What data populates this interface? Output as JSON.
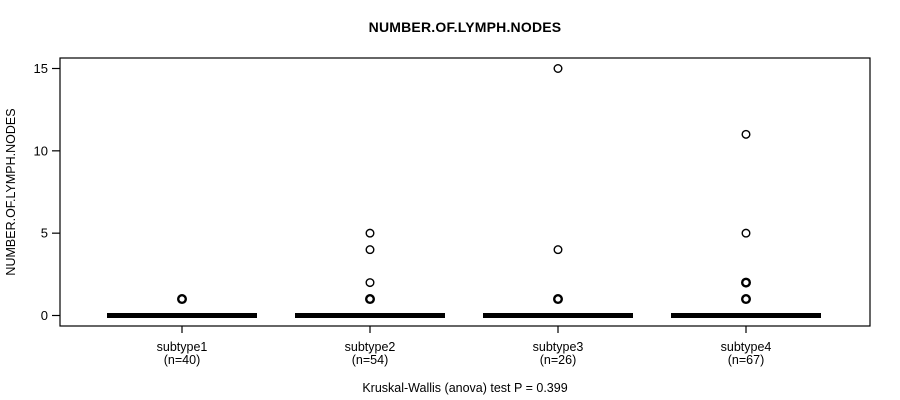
{
  "title": "NUMBER.OF.LYMPH.NODES",
  "footer": "Kruskal-Wallis (anova) test P = 0.399",
  "colors": {
    "foreground": "#000000",
    "background": "#ffffff",
    "box_border": "#000000"
  },
  "chart_data": {
    "type": "boxplot",
    "title": "NUMBER.OF.LYMPH.NODES",
    "xlabel": "",
    "ylabel": "NUMBER.OF.LYMPH.NODES",
    "ylim": [
      0,
      15
    ],
    "yticks": [
      0,
      5,
      10,
      15
    ],
    "grid": false,
    "annotation": "Kruskal-Wallis (anova) test P = 0.399",
    "categories": [
      {
        "label": "subtype1",
        "n_label": "(n=40)",
        "n": 40,
        "median": 0,
        "q1": 0,
        "q3": 0,
        "whisker_low": 0,
        "whisker_high": 0,
        "outliers": [
          {
            "value": 1,
            "bold": true
          }
        ]
      },
      {
        "label": "subtype2",
        "n_label": "(n=54)",
        "n": 54,
        "median": 0,
        "q1": 0,
        "q3": 0,
        "whisker_low": 0,
        "whisker_high": 0,
        "outliers": [
          {
            "value": 5,
            "bold": false
          },
          {
            "value": 4,
            "bold": false
          },
          {
            "value": 2,
            "bold": false
          },
          {
            "value": 1,
            "bold": true
          }
        ]
      },
      {
        "label": "subtype3",
        "n_label": "(n=26)",
        "n": 26,
        "median": 0,
        "q1": 0,
        "q3": 0,
        "whisker_low": 0,
        "whisker_high": 0,
        "outliers": [
          {
            "value": 15,
            "bold": false
          },
          {
            "value": 4,
            "bold": false
          },
          {
            "value": 1,
            "bold": true
          }
        ]
      },
      {
        "label": "subtype4",
        "n_label": "(n=67)",
        "n": 67,
        "median": 0,
        "q1": 0,
        "q3": 0,
        "whisker_low": 0,
        "whisker_high": 0,
        "outliers": [
          {
            "value": 11,
            "bold": false
          },
          {
            "value": 5,
            "bold": false
          },
          {
            "value": 2,
            "bold": true
          },
          {
            "value": 1,
            "bold": true
          }
        ]
      }
    ]
  }
}
